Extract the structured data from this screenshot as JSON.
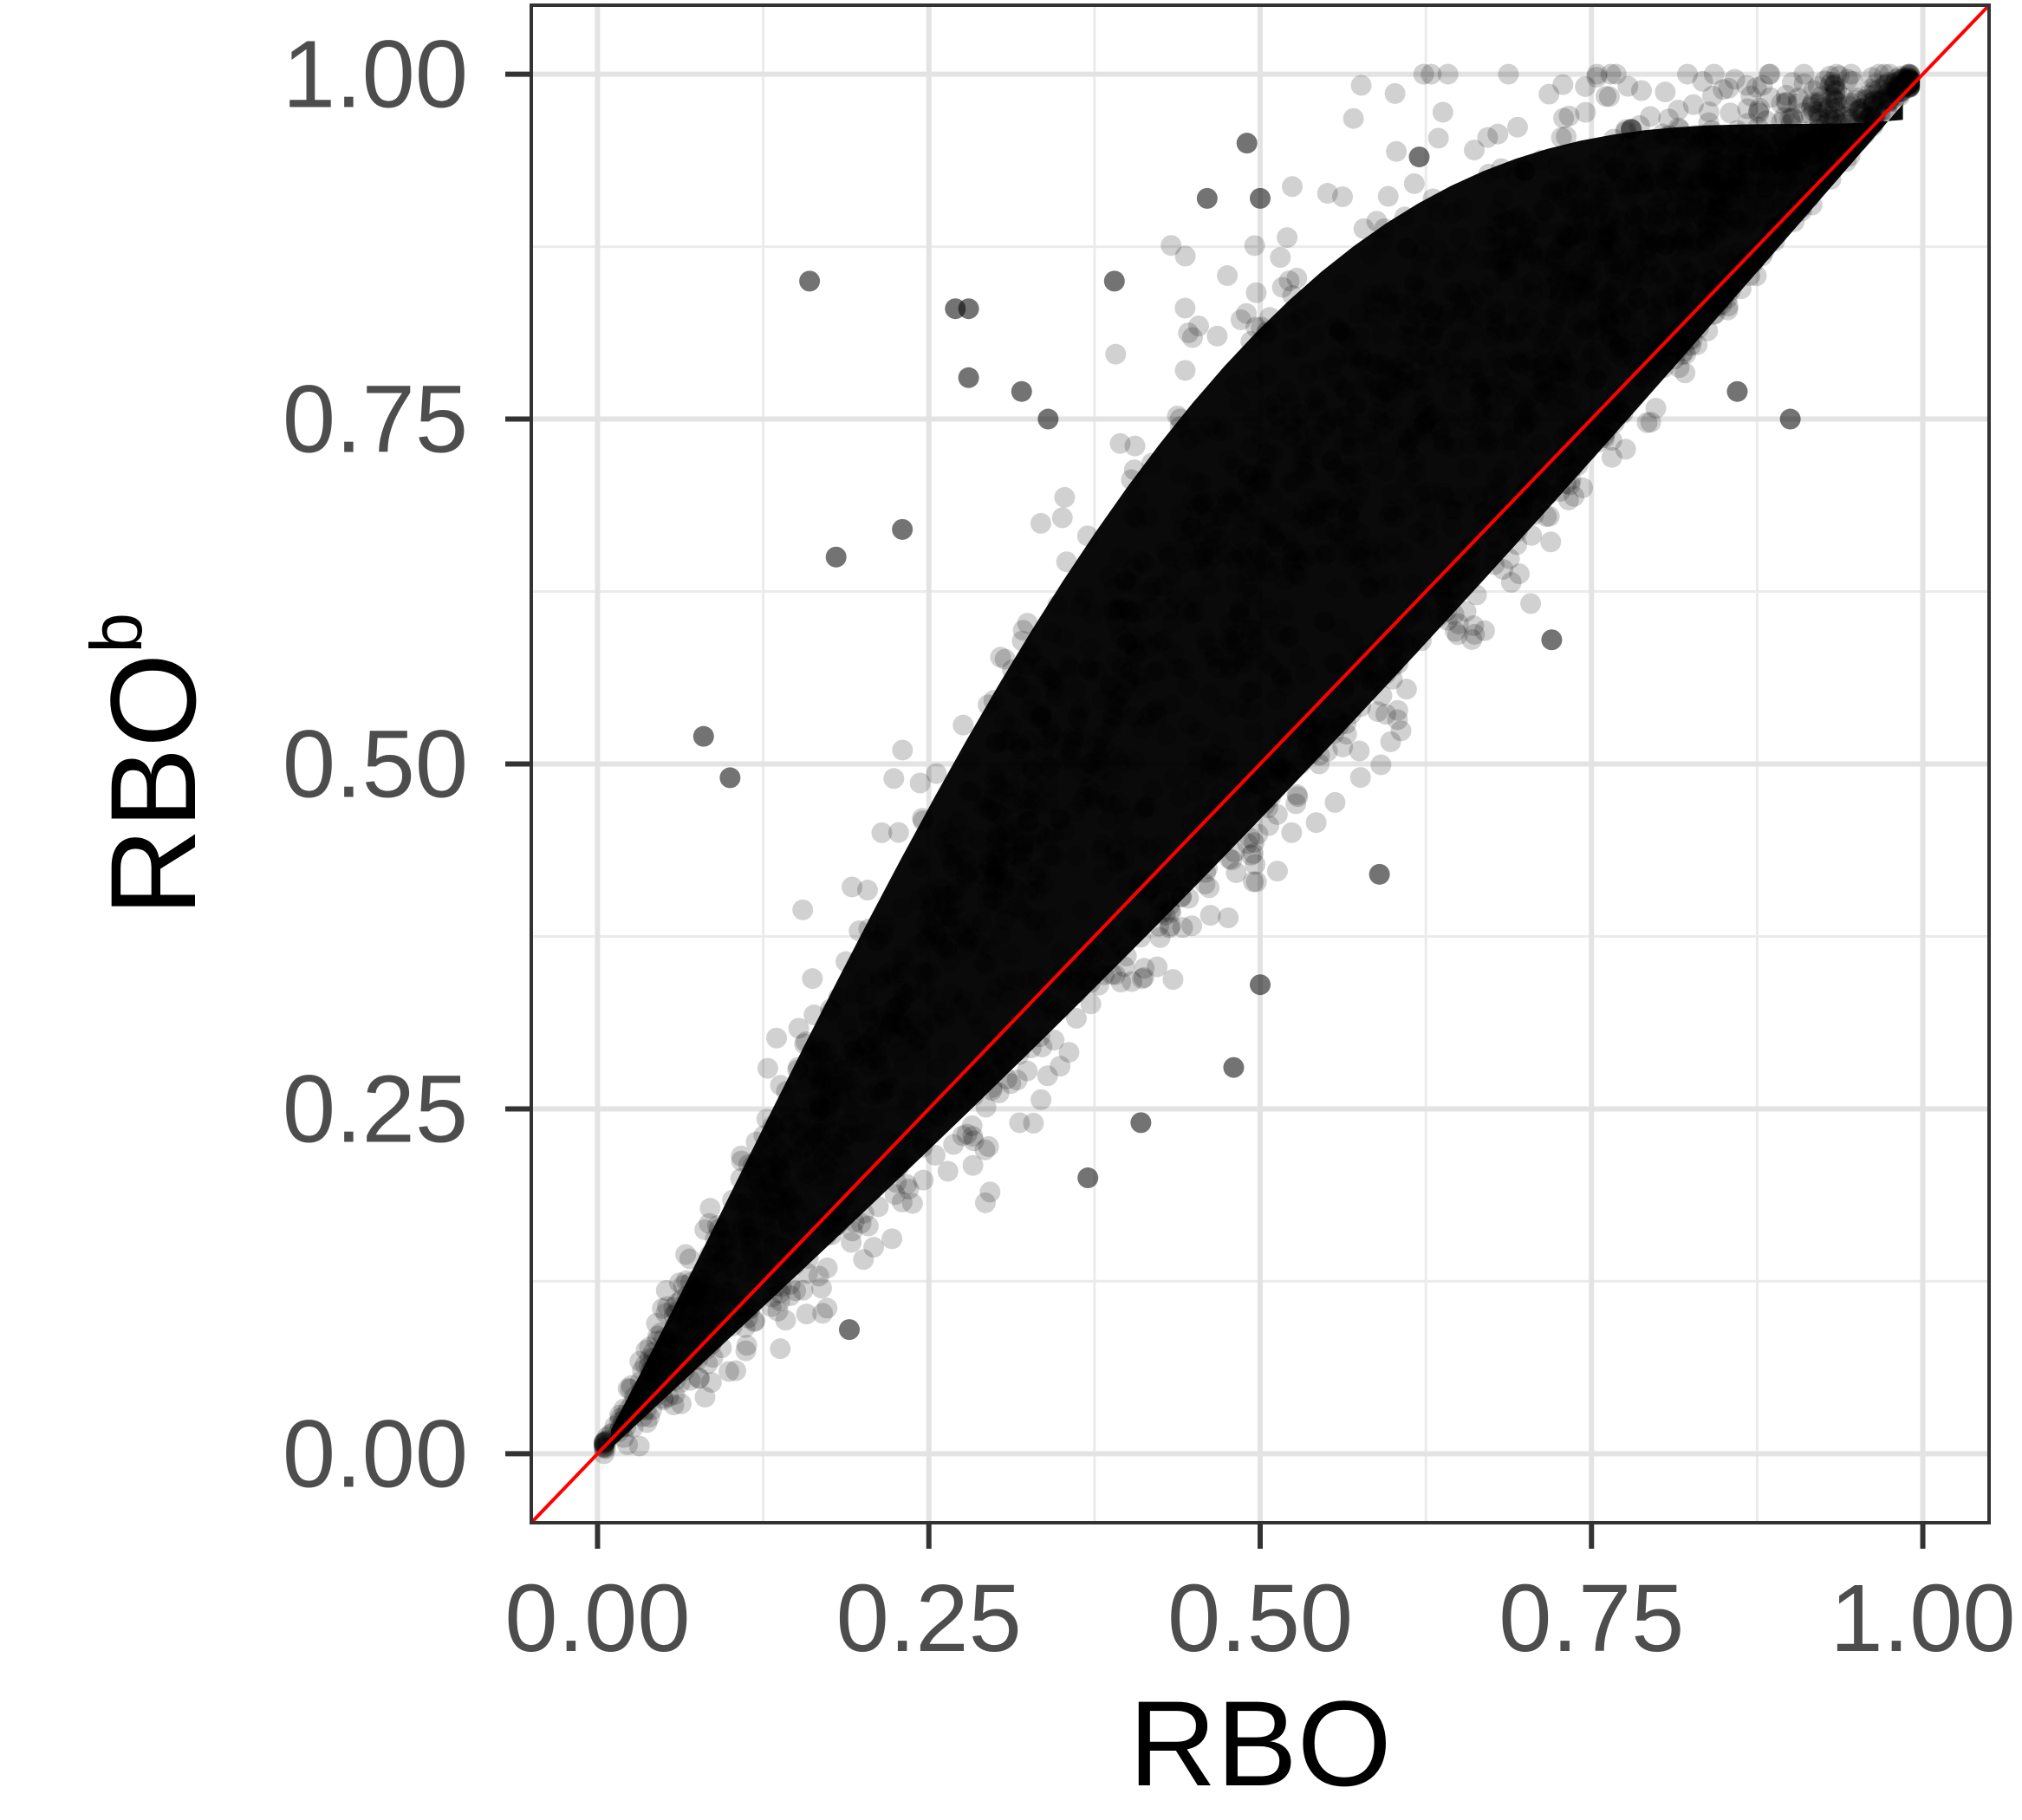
{
  "chart_data": {
    "type": "scatter",
    "xlabel": "RBO",
    "ylabel": "RBO",
    "ylabel_superscript": "b",
    "xlim": [
      -0.05,
      1.05
    ],
    "ylim": [
      -0.05,
      1.05
    ],
    "x_ticks": [
      {
        "value": 0.0,
        "label": "0.00"
      },
      {
        "value": 0.25,
        "label": "0.25"
      },
      {
        "value": 0.5,
        "label": "0.50"
      },
      {
        "value": 0.75,
        "label": "0.75"
      },
      {
        "value": 1.0,
        "label": "1.00"
      }
    ],
    "y_ticks": [
      {
        "value": 0.0,
        "label": "0.00"
      },
      {
        "value": 0.25,
        "label": "0.25"
      },
      {
        "value": 0.5,
        "label": "0.50"
      },
      {
        "value": 0.75,
        "label": "0.75"
      },
      {
        "value": 1.0,
        "label": "1.00"
      }
    ],
    "minor_gridlines": [
      0.125,
      0.375,
      0.625,
      0.875
    ],
    "grid": true,
    "point_color": "#000000",
    "reference_line": {
      "type": "identity",
      "slope": 1,
      "intercept": 0,
      "color": "#ff0000"
    },
    "outlier_points": [
      {
        "x": 0.16,
        "y": 0.85
      },
      {
        "x": 0.27,
        "y": 0.83
      },
      {
        "x": 0.28,
        "y": 0.83
      },
      {
        "x": 0.28,
        "y": 0.78
      },
      {
        "x": 0.39,
        "y": 0.85
      },
      {
        "x": 0.49,
        "y": 0.95
      },
      {
        "x": 0.46,
        "y": 0.91
      },
      {
        "x": 0.5,
        "y": 0.91
      },
      {
        "x": 0.08,
        "y": 0.52
      },
      {
        "x": 0.1,
        "y": 0.49
      },
      {
        "x": 0.18,
        "y": 0.65
      },
      {
        "x": 0.23,
        "y": 0.67
      },
      {
        "x": 0.32,
        "y": 0.77
      },
      {
        "x": 0.34,
        "y": 0.75
      },
      {
        "x": 0.48,
        "y": 0.28
      },
      {
        "x": 0.37,
        "y": 0.2
      },
      {
        "x": 0.41,
        "y": 0.24
      },
      {
        "x": 0.19,
        "y": 0.09
      },
      {
        "x": 0.5,
        "y": 0.34
      },
      {
        "x": 0.59,
        "y": 0.42
      },
      {
        "x": 0.72,
        "y": 0.59
      },
      {
        "x": 0.9,
        "y": 0.75
      },
      {
        "x": 0.86,
        "y": 0.77
      },
      {
        "x": 0.62,
        "y": 0.94
      },
      {
        "x": 0.7,
        "y": 0.93
      },
      {
        "x": 0.78,
        "y": 0.96
      }
    ]
  }
}
